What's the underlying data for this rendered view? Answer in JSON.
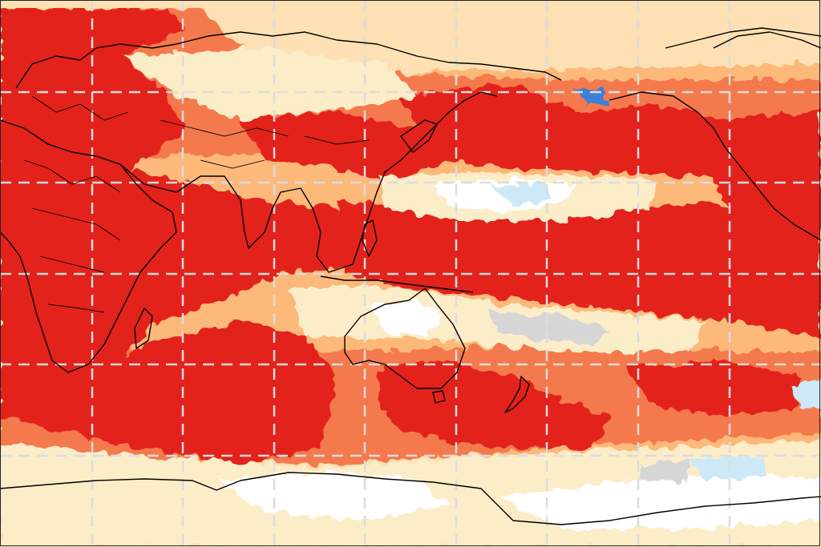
{
  "map": {
    "projection": "equirectangular",
    "center": "Pacific",
    "data_kind": "gridded anomaly field",
    "colors": {
      "background_land_pale": "#fde0b3",
      "cream": "#fcedc9",
      "light_orange": "#fcb97a",
      "orange": "#f47a4d",
      "red": "#e3211c",
      "white_neutral": "#ffffff",
      "light_grey": "#d6d6d6",
      "light_blue": "#cde9f7",
      "blue": "#3d7fd8",
      "coastline": "#000000",
      "graticule": "#dcdcdc"
    },
    "graticule": {
      "style": "dashed",
      "visible": true
    },
    "coastlines": {
      "visible": true,
      "country_borders": true
    }
  }
}
